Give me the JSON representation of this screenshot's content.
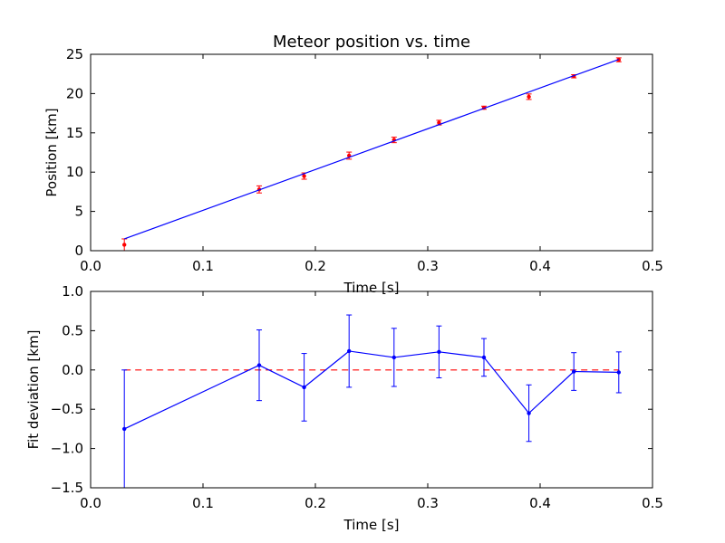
{
  "chart_data": [
    {
      "type": "scatter",
      "title": "Meteor position vs. time",
      "xlabel": "Time [s]",
      "ylabel": "Position [km]",
      "xlim": [
        0.0,
        0.5
      ],
      "ylim": [
        0,
        25
      ],
      "x_ticks": [
        "0.0",
        "0.1",
        "0.2",
        "0.3",
        "0.4",
        "0.5"
      ],
      "y_ticks": [
        "0",
        "5",
        "10",
        "15",
        "20",
        "25"
      ],
      "grid": false,
      "series": [
        {
          "kind": "errorbar-points",
          "color": "#ff0000",
          "x": [
            0.03,
            0.15,
            0.19,
            0.23,
            0.27,
            0.31,
            0.35,
            0.39,
            0.43,
            0.47
          ],
          "y": [
            0.75,
            7.8,
            9.5,
            12.1,
            14.1,
            16.3,
            18.2,
            19.6,
            22.2,
            24.3
          ],
          "yerr": [
            0.75,
            0.45,
            0.4,
            0.45,
            0.35,
            0.3,
            0.2,
            0.35,
            0.2,
            0.25
          ]
        },
        {
          "kind": "fit-line",
          "color": "#0000ff",
          "x": [
            0.03,
            0.47
          ],
          "y": [
            1.5,
            24.35
          ]
        }
      ]
    },
    {
      "type": "line",
      "title": "",
      "xlabel": "Time [s]",
      "ylabel": "Fit deviation [km]",
      "xlim": [
        0.0,
        0.5
      ],
      "ylim": [
        -1.5,
        1.0
      ],
      "x_ticks": [
        "0.0",
        "0.1",
        "0.2",
        "0.3",
        "0.4",
        "0.5"
      ],
      "y_ticks": [
        "−1.5",
        "−1.0",
        "−0.5",
        "0.0",
        "0.5",
        "1.0"
      ],
      "grid": false,
      "reference_line": {
        "y": 0.0,
        "color": "#ff0000",
        "style": "dashed"
      },
      "series": [
        {
          "kind": "errorbar-line",
          "color": "#0000ff",
          "x": [
            0.03,
            0.15,
            0.19,
            0.23,
            0.27,
            0.31,
            0.35,
            0.39,
            0.43,
            0.47
          ],
          "y": [
            -0.75,
            0.06,
            -0.22,
            0.24,
            0.16,
            0.23,
            0.16,
            -0.55,
            -0.02,
            -0.03
          ],
          "yerr": [
            0.75,
            0.45,
            0.43,
            0.46,
            0.37,
            0.33,
            0.24,
            0.36,
            0.24,
            0.26
          ]
        }
      ]
    }
  ]
}
